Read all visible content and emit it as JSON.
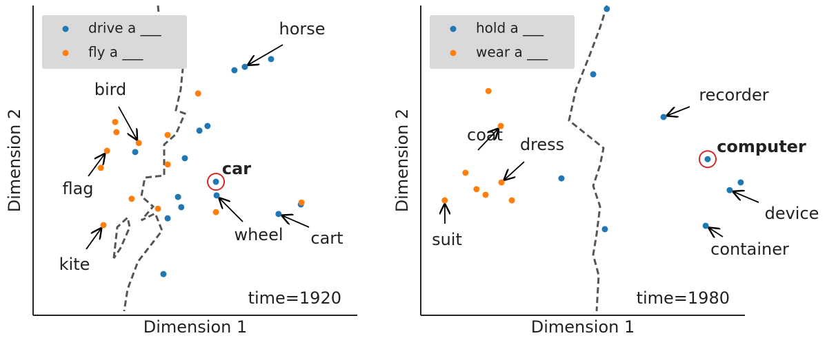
{
  "chart_data": [
    {
      "type": "scatter",
      "xlabel": "Dimension 1",
      "ylabel": "Dimension 2",
      "xlim": [
        0,
        100
      ],
      "ylim": [
        0,
        100
      ],
      "series": [
        {
          "name": "drive a ___",
          "color": "#1f77b4",
          "x": [
            62.1,
            65.3,
            73.4,
            51.3,
            53.8,
            31.5,
            46.8,
            56.4,
            56.6,
            44.7,
            45.7,
            41.5,
            75.7,
            82.6,
            40.2
          ],
          "values": [
            79.1,
            80.2,
            82.7,
            59.6,
            61.1,
            52.7,
            50.7,
            43.1,
            38.7,
            38.2,
            34.9,
            31.3,
            32.7,
            35.8,
            13.3
          ]
        },
        {
          "name": "fly a ___",
          "color": "#ff7f0e",
          "x": [
            43.4,
            36.4,
            50.9,
            25.3,
            25.7,
            41.5,
            32.6,
            22.8,
            20.9,
            41.5,
            30.4,
            38.5,
            56.4,
            82.8,
            21.7
          ],
          "values": [
            87.1,
            80.9,
            71.6,
            62.4,
            59.1,
            58.2,
            55.6,
            53.1,
            47.6,
            48.7,
            37.6,
            34.4,
            33.3,
            36.4,
            29.1
          ]
        }
      ],
      "annotations": [
        "horse",
        "bird",
        "flag",
        "car",
        "wheel",
        "cart",
        "kite",
        "time=1920"
      ]
    },
    {
      "type": "scatter",
      "xlabel": "Dimension 1",
      "ylabel": "Dimension 2",
      "xlim": [
        0,
        100
      ],
      "ylim": [
        0,
        100
      ],
      "series": [
        {
          "name": "hold a ___",
          "color": "#1f77b4",
          "x": [
            57.4,
            53.2,
            74.9,
            88.5,
            95.3,
            98.7,
            43.4,
            56.8,
            87.9
          ],
          "values": [
            98.9,
            77.8,
            64.0,
            50.4,
            40.4,
            42.9,
            44.2,
            27.8,
            28.9
          ]
        },
        {
          "name": "wear a ___",
          "color": "#ff7f0e",
          "x": [
            20.9,
            24.7,
            13.8,
            24.9,
            17.2,
            20.0,
            28.1,
            7.4
          ],
          "values": [
            72.4,
            61.1,
            46.0,
            42.9,
            40.7,
            38.9,
            37.1,
            37.1
          ]
        }
      ],
      "annotations": [
        "recorder",
        "computer",
        "device",
        "container",
        "coat",
        "dress",
        "suit",
        "time=1980"
      ]
    }
  ]
}
